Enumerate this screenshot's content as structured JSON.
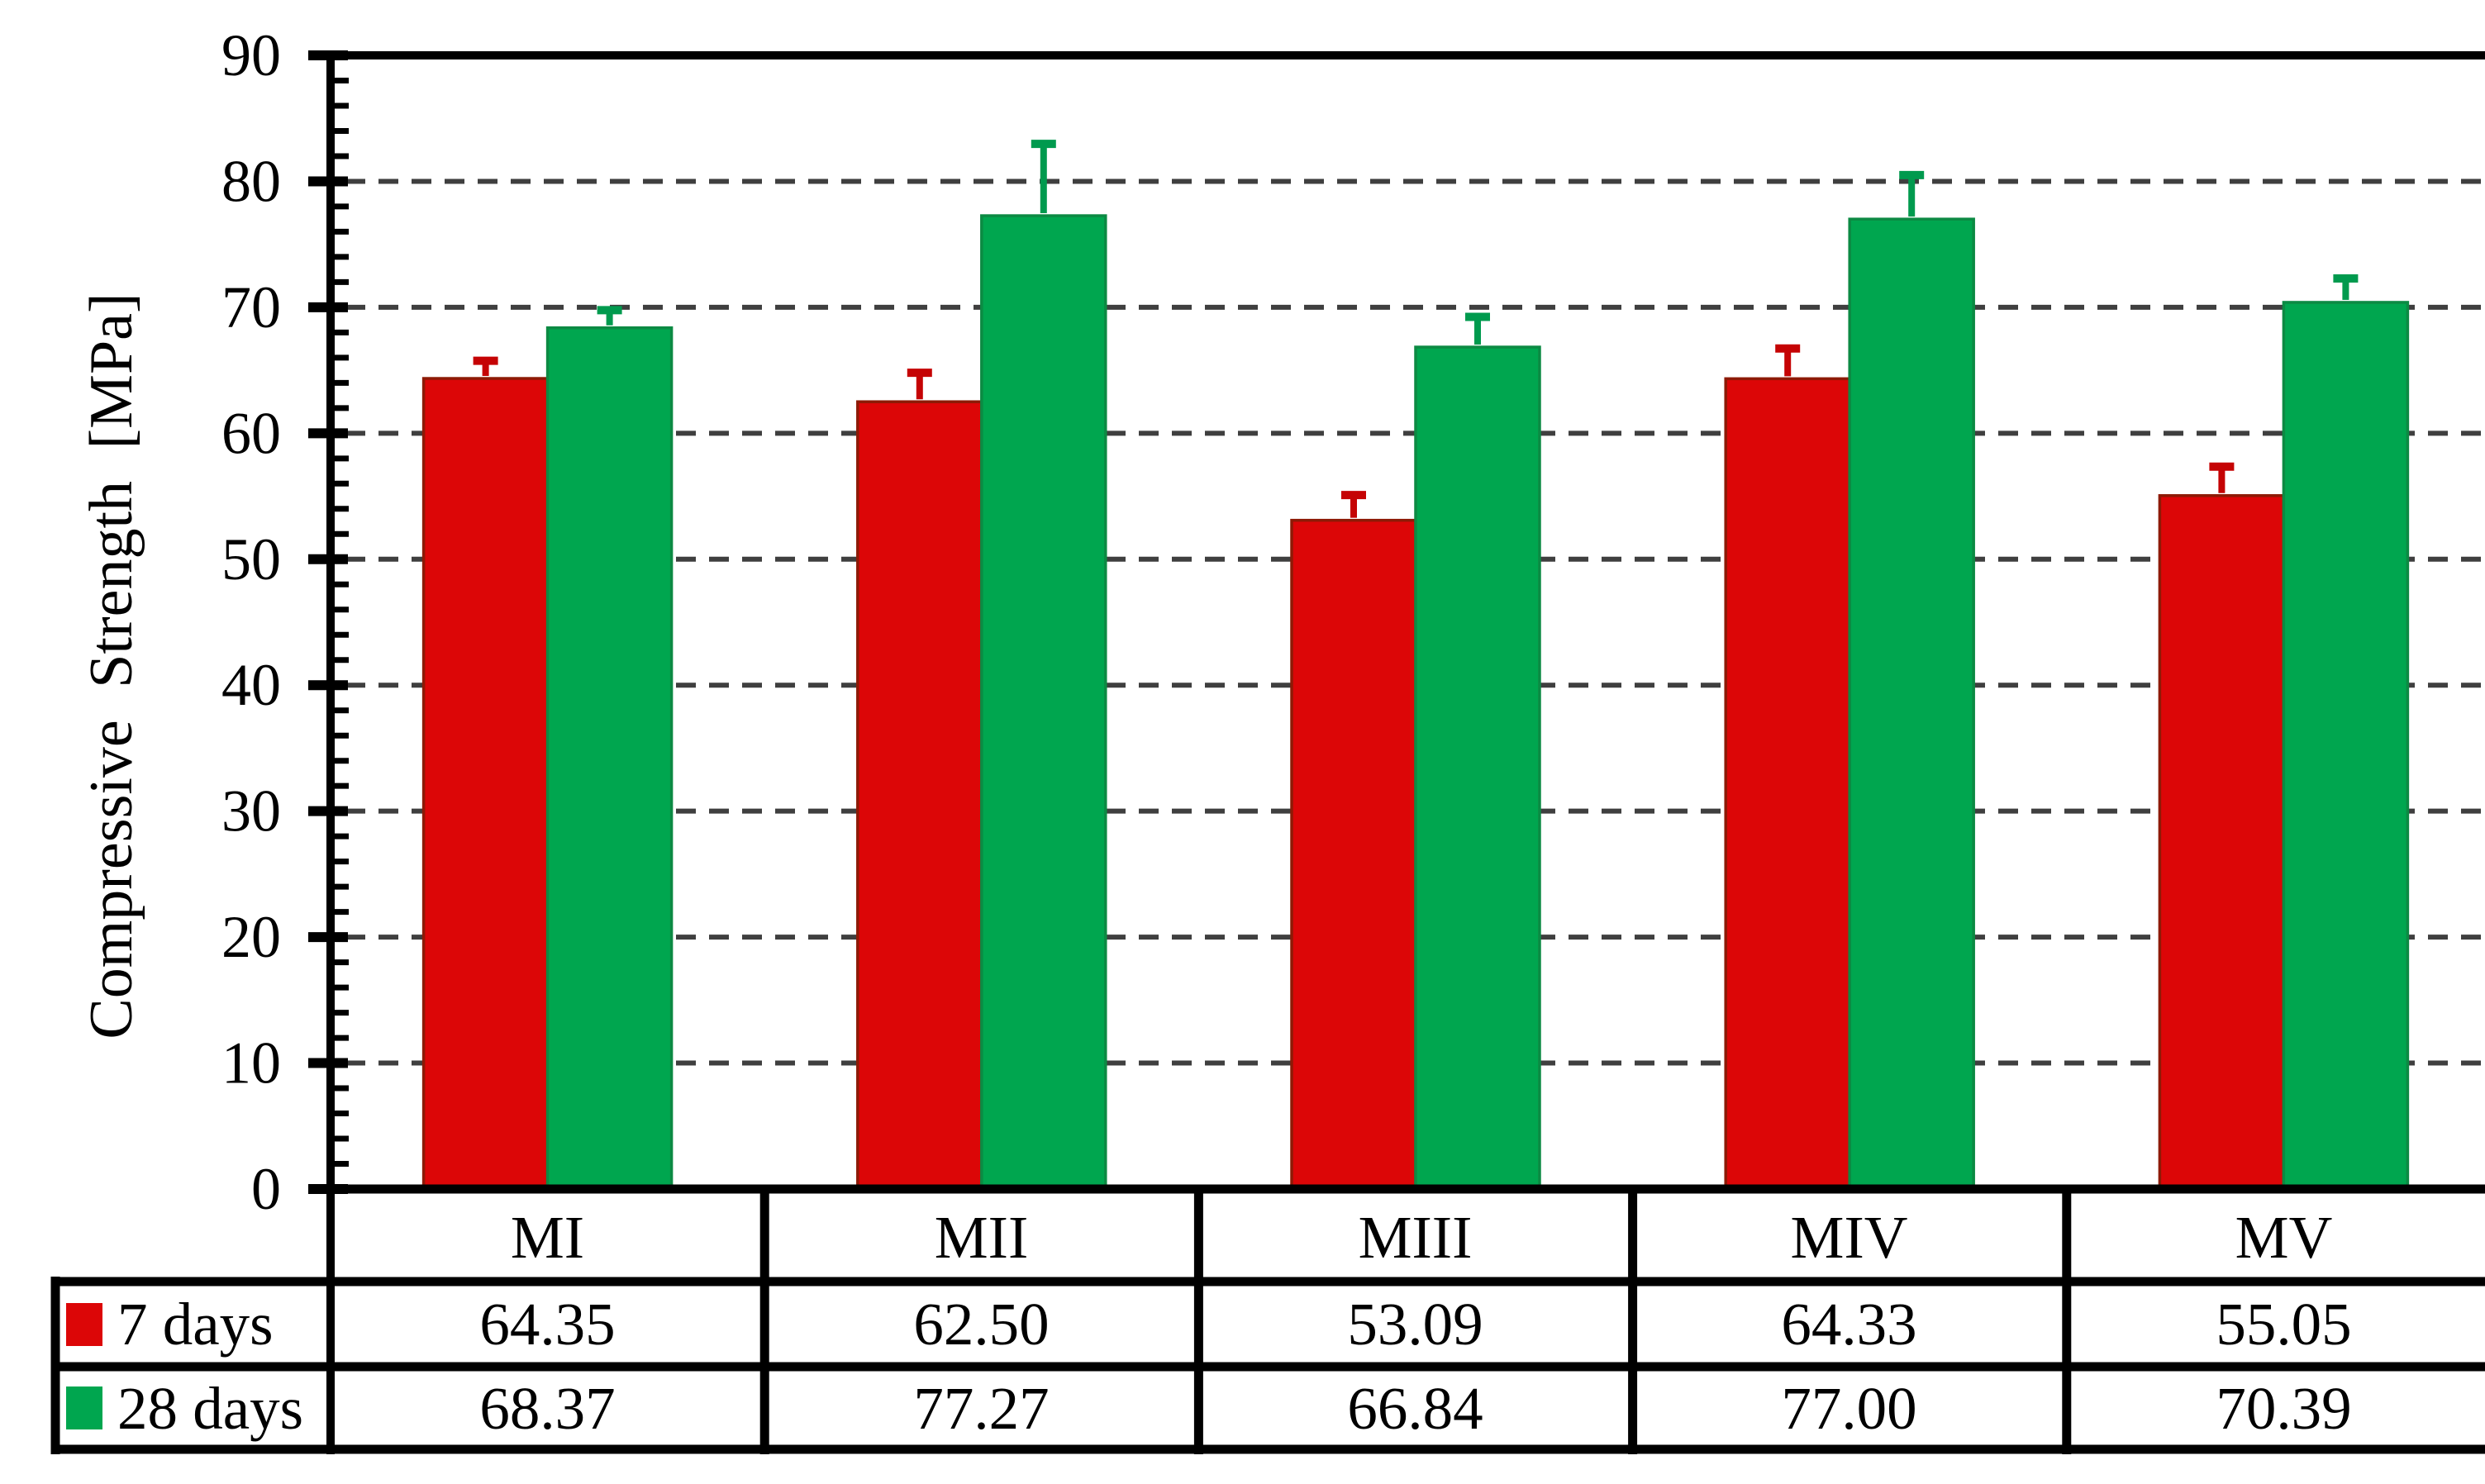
{
  "page": {
    "background": "#ffffff"
  },
  "chart_data": {
    "type": "bar",
    "title": "",
    "xlabel": "",
    "ylabel": "Compressive Strength [MPa]",
    "categories": [
      "MI",
      "MII",
      "MIII",
      "MIV",
      "MV"
    ],
    "series": [
      {
        "name": "7 days",
        "color": "#dc0607",
        "edge_color": "#8d1a06",
        "error_color": "#c50304",
        "values": [
          64.35,
          62.5,
          53.09,
          64.33,
          55.05
        ],
        "errors_plus": [
          1.4,
          2.3,
          2.0,
          2.4,
          2.3
        ]
      },
      {
        "name": "28 days",
        "color": "#00a64f",
        "edge_color": "#0c8a43",
        "error_color": "#009a4e",
        "values": [
          68.37,
          77.27,
          66.84,
          77.0,
          70.39
        ],
        "errors_plus": [
          1.4,
          5.7,
          2.4,
          3.5,
          1.9
        ]
      }
    ],
    "ylim": [
      0,
      90
    ],
    "ytick_step": 10,
    "yminor_step": 2,
    "ytick_labels": [
      "0",
      "10",
      "20",
      "30",
      "40",
      "50",
      "60",
      "70",
      "80",
      "90"
    ],
    "grid": {
      "horizontal": "dashed",
      "color": "#3f3f3f",
      "on_major_ticks": true
    },
    "error_bars": "upper only, capped",
    "legend_position": "table-left-column",
    "data_table": {
      "rows": [
        {
          "label": "7 days",
          "values": [
            "64.35",
            "62.50",
            "53.09",
            "64.33",
            "55.05"
          ]
        },
        {
          "label": "28 days",
          "values": [
            "68.37",
            "77.27",
            "66.84",
            "77.00",
            "70.39"
          ]
        }
      ]
    }
  }
}
